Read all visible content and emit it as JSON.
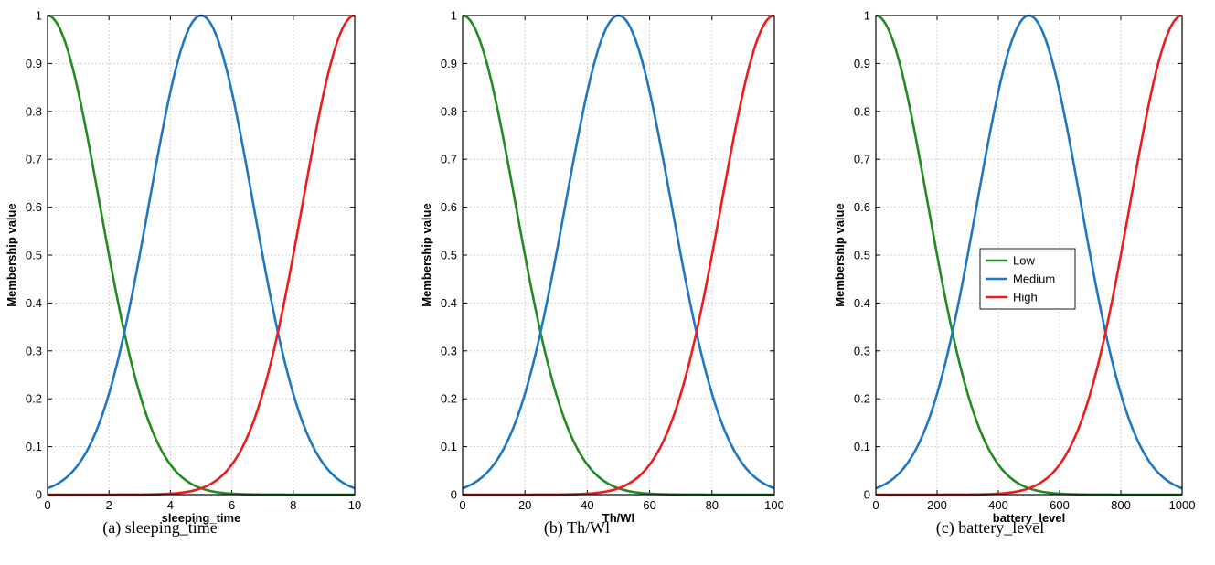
{
  "palette": {
    "Low": "#228b22",
    "Medium": "#1f77c4",
    "High": "#ee1c1c",
    "grid": "#b8b8b8"
  },
  "chart_data": [
    {
      "type": "line",
      "caption": "(a) sleeping_time",
      "xlabel": "sleeping_time",
      "ylabel": "Membership value",
      "xlim": [
        0,
        10
      ],
      "ylim": [
        0,
        1
      ],
      "xticks": [
        "0",
        "2",
        "4",
        "6",
        "8",
        "10"
      ],
      "yticks": [
        "0",
        "0.1",
        "0.2",
        "0.3",
        "0.4",
        "0.5",
        "0.6",
        "0.7",
        "0.8",
        "0.9",
        "1"
      ],
      "grid": true,
      "legend": null,
      "x": [
        0,
        1,
        2,
        2.5,
        3,
        4,
        5,
        6,
        7,
        7.5,
        8,
        9,
        10
      ],
      "series": [
        {
          "name": "Low",
          "values": [
            1,
            0.75,
            0.32,
            0.25,
            0.16,
            0.04,
            0.005,
            0,
            0,
            0,
            0,
            0,
            0
          ]
        },
        {
          "name": "Medium",
          "values": [
            0.005,
            0.04,
            0.16,
            0.25,
            0.32,
            0.75,
            1,
            0.75,
            0.32,
            0.25,
            0.16,
            0.04,
            0.005
          ]
        },
        {
          "name": "High",
          "values": [
            0,
            0,
            0,
            0,
            0,
            0,
            0.005,
            0.04,
            0.16,
            0.25,
            0.32,
            0.75,
            1
          ]
        }
      ]
    },
    {
      "type": "line",
      "caption": "(b) Th/Wl",
      "xlabel": "Th/Wl",
      "ylabel": "Membership value",
      "xlim": [
        0,
        100
      ],
      "ylim": [
        0,
        1
      ],
      "xticks": [
        "0",
        "20",
        "40",
        "60",
        "80",
        "100"
      ],
      "yticks": [
        "0",
        "0.1",
        "0.2",
        "0.3",
        "0.4",
        "0.5",
        "0.6",
        "0.7",
        "0.8",
        "0.9",
        "1"
      ],
      "grid": true,
      "legend": null,
      "x": [
        0,
        10,
        20,
        25,
        30,
        40,
        50,
        60,
        70,
        75,
        80,
        90,
        100
      ],
      "series": [
        {
          "name": "Low",
          "values": [
            1,
            0.75,
            0.32,
            0.25,
            0.16,
            0.04,
            0.005,
            0,
            0,
            0,
            0,
            0,
            0
          ]
        },
        {
          "name": "Medium",
          "values": [
            0.005,
            0.04,
            0.16,
            0.25,
            0.32,
            0.75,
            1,
            0.75,
            0.32,
            0.25,
            0.16,
            0.04,
            0.005
          ]
        },
        {
          "name": "High",
          "values": [
            0,
            0,
            0,
            0,
            0,
            0,
            0.005,
            0.04,
            0.16,
            0.25,
            0.32,
            0.75,
            1
          ]
        }
      ]
    },
    {
      "type": "line",
      "caption": "(c) battery_level",
      "xlabel": "battery_level",
      "ylabel": "Membership value",
      "xlim": [
        0,
        1000
      ],
      "ylim": [
        0,
        1
      ],
      "xticks": [
        "0",
        "200",
        "400",
        "600",
        "800",
        "1000"
      ],
      "yticks": [
        "0",
        "0.1",
        "0.2",
        "0.3",
        "0.4",
        "0.5",
        "0.6",
        "0.7",
        "0.8",
        "0.9",
        "1"
      ],
      "grid": true,
      "legend": "center-left",
      "x": [
        0,
        100,
        200,
        250,
        300,
        400,
        500,
        600,
        700,
        750,
        800,
        900,
        1000
      ],
      "series": [
        {
          "name": "Low",
          "values": [
            1,
            0.75,
            0.32,
            0.25,
            0.16,
            0.04,
            0.005,
            0,
            0,
            0,
            0,
            0,
            0
          ]
        },
        {
          "name": "Medium",
          "values": [
            0.005,
            0.04,
            0.16,
            0.25,
            0.32,
            0.75,
            1,
            0.75,
            0.32,
            0.25,
            0.16,
            0.04,
            0.005
          ]
        },
        {
          "name": "High",
          "values": [
            0,
            0,
            0,
            0,
            0,
            0,
            0.005,
            0.04,
            0.16,
            0.25,
            0.32,
            0.75,
            1
          ]
        }
      ]
    }
  ]
}
